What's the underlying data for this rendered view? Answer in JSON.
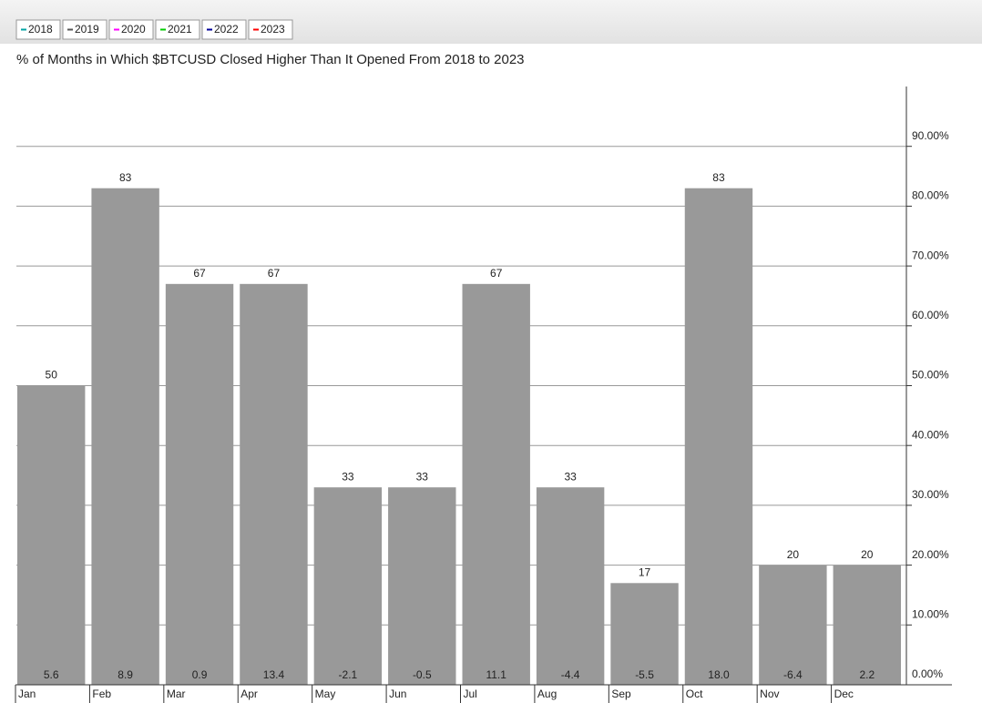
{
  "chart_data": {
    "type": "bar",
    "title": "% of Months in Which $BTCUSD Closed Higher Than It Opened From 2018 to 2023",
    "legend": [
      {
        "name": "2018",
        "color": "#00a3a3"
      },
      {
        "name": "2019",
        "color": "#555555"
      },
      {
        "name": "2020",
        "color": "#ff00ff"
      },
      {
        "name": "2021",
        "color": "#00cc00"
      },
      {
        "name": "2022",
        "color": "#000099"
      },
      {
        "name": "2023",
        "color": "#ff0000"
      }
    ],
    "categories": [
      "Jan",
      "Feb",
      "Mar",
      "Apr",
      "May",
      "Jun",
      "Jul",
      "Aug",
      "Sep",
      "Oct",
      "Nov",
      "Dec"
    ],
    "values": [
      50,
      83,
      67,
      67,
      33,
      33,
      67,
      33,
      17,
      83,
      20,
      20
    ],
    "bottom_labels": [
      "5.6",
      "8.9",
      "0.9",
      "13.4",
      "-2.1",
      "-0.5",
      "11.1",
      "-4.4",
      "-5.5",
      "18.0",
      "-6.4",
      "2.2"
    ],
    "color": "#999999",
    "ylim": [
      0,
      100
    ],
    "yticks": [
      {
        "value": 0,
        "label": "0.00%"
      },
      {
        "value": 10,
        "label": "10.00%"
      },
      {
        "value": 20,
        "label": "20.00%"
      },
      {
        "value": 30,
        "label": "30.00%"
      },
      {
        "value": 40,
        "label": "40.00%"
      },
      {
        "value": 50,
        "label": "50.00%"
      },
      {
        "value": 60,
        "label": "60.00%"
      },
      {
        "value": 70,
        "label": "70.00%"
      },
      {
        "value": 80,
        "label": "80.00%"
      },
      {
        "value": 90,
        "label": "90.00%"
      }
    ],
    "grid": true
  }
}
